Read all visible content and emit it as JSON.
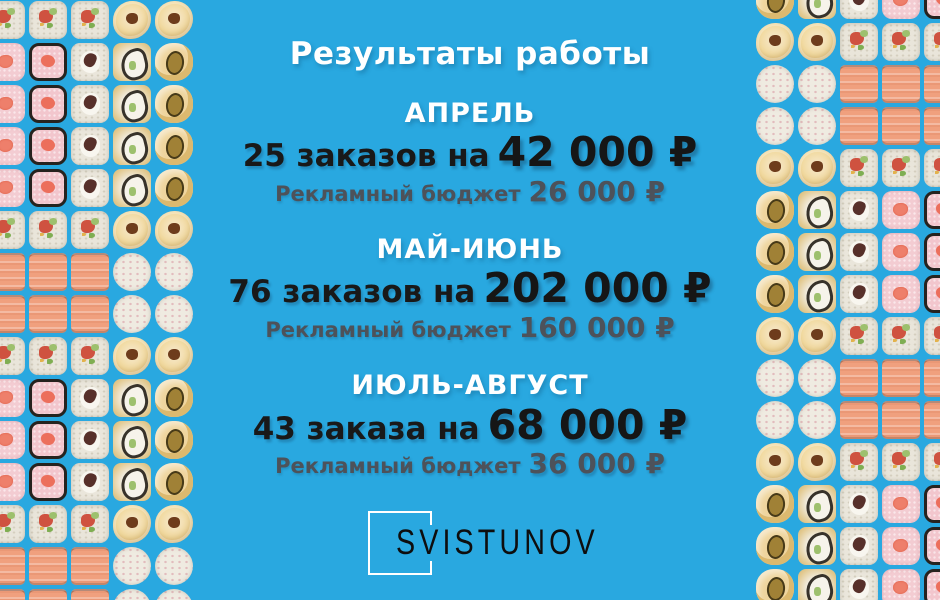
{
  "title": "Результаты работы",
  "sections": [
    {
      "month": "АПРЕЛЬ",
      "orders_prefix": "25 заказов на",
      "orders_amount": "42 000 ₽",
      "budget_label": "Рекламный бюджет",
      "budget_amount": "26 000 ₽"
    },
    {
      "month": "МАЙ-ИЮНЬ",
      "orders_prefix": "76 заказов на",
      "orders_amount": "202 000 ₽",
      "budget_label": "Рекламный бюджет",
      "budget_amount": "160 000 ₽"
    },
    {
      "month": "ИЮЛЬ-АВГУСТ",
      "orders_prefix": "43 заказа на",
      "orders_amount": "68 000 ₽",
      "budget_label": "Рекламный бюджет",
      "budget_amount": "36 000 ₽"
    }
  ],
  "logo": {
    "text": "SVISTUNOV"
  },
  "colors": {
    "background": "#29a8e0",
    "heading_white": "#ffffff",
    "orders_dark": "#191919",
    "budget_gray": "#4d525a",
    "logo_black": "#0e0e0e",
    "sushi_rice": "#e9e5da",
    "sushi_pink": "#f3ccd2",
    "sushi_tempura": "#f1d99e",
    "sushi_salmon": "#f0a07e",
    "sushi_nori": "#26231f"
  },
  "decor": {
    "row_types": {
      "A": [
        "makiVeg",
        "makiVeg",
        "makiVeg",
        "tempSwirl",
        "tempSwirl"
      ],
      "B": [
        "pink",
        "pinkNori",
        "creamTuna",
        "crusted",
        "tempOlive"
      ],
      "C": [
        "salmon",
        "salmon",
        "salmon",
        "plain",
        "plain"
      ],
      "Ar": [
        "tempSwirl",
        "tempSwirl",
        "makiVeg",
        "makiVeg",
        "makiVeg"
      ],
      "Br": [
        "tempOlive",
        "crusted",
        "creamTuna",
        "pink",
        "pinkNori"
      ],
      "Cr": [
        "plain",
        "plain",
        "salmon",
        "salmon",
        "salmon"
      ]
    },
    "left_rows": [
      "A",
      "B",
      "B",
      "B",
      "B",
      "A",
      "C",
      "C",
      "A",
      "B",
      "B",
      "B",
      "A",
      "C",
      "C"
    ],
    "right_rows": [
      "Br",
      "Ar",
      "Cr",
      "Cr",
      "Ar",
      "Br",
      "Br",
      "Br",
      "Ar",
      "Cr",
      "Cr",
      "Ar",
      "Br",
      "Br",
      "Br"
    ]
  }
}
